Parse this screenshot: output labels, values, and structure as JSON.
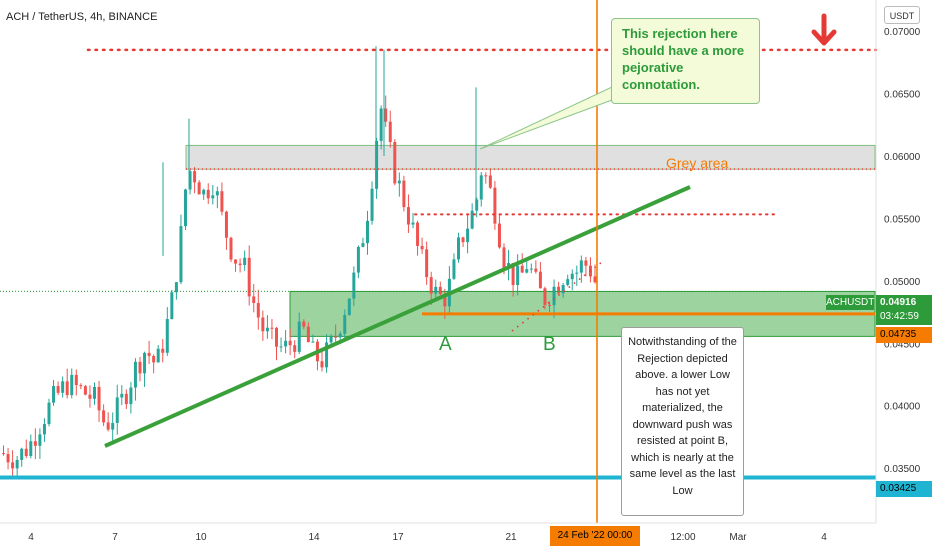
{
  "header": {
    "title": "ACH / TetherUS, 4h, BINANCE",
    "unit_label": "USDT"
  },
  "chart_data": {
    "type": "candlestick",
    "symbol": "ACHUSDT",
    "timeframe": "4h",
    "exchange": "BINANCE",
    "y_ticks": [
      "0.07000",
      "0.06500",
      "0.06000",
      "0.05500",
      "0.05000",
      "0.04500",
      "0.04000",
      "0.03500"
    ],
    "x_ticks": [
      "4",
      "7",
      "10",
      "14",
      "17",
      "21",
      "12:00",
      "Mar",
      "4"
    ],
    "ylim": [
      0.0306,
      0.0725
    ],
    "grid": false,
    "colors": {
      "up": "#26a69a",
      "down": "#ef5350",
      "trend": "#3aa13a",
      "support": "#f57c00",
      "base": "#1fb5d2",
      "resistance": "#e53935"
    },
    "levels": {
      "upper_dotted": 0.0685,
      "mid_dotted": 0.05533,
      "grey_area": [
        0.05895,
        0.06085
      ],
      "green_zone": [
        0.04555,
        0.04915
      ],
      "orange_support": 0.04735,
      "cyan_support": 0.03425
    },
    "price_tags": {
      "current": "0.04916",
      "countdown": "03:42:59",
      "support": "0.04735",
      "base": "0.03425"
    },
    "date_highlight": "24 Feb '22  00:00",
    "annotations": {
      "grey_area": "Grey area",
      "point_a": "A",
      "point_b": "B",
      "rejection": "This rejection here should have a more pejorative connotation.",
      "note": "Notwithstanding of the Rejection depicted above. a lower Low has not yet materialized, the downward push was resisted at point B, which is nearly at the same level as the last Low"
    }
  }
}
